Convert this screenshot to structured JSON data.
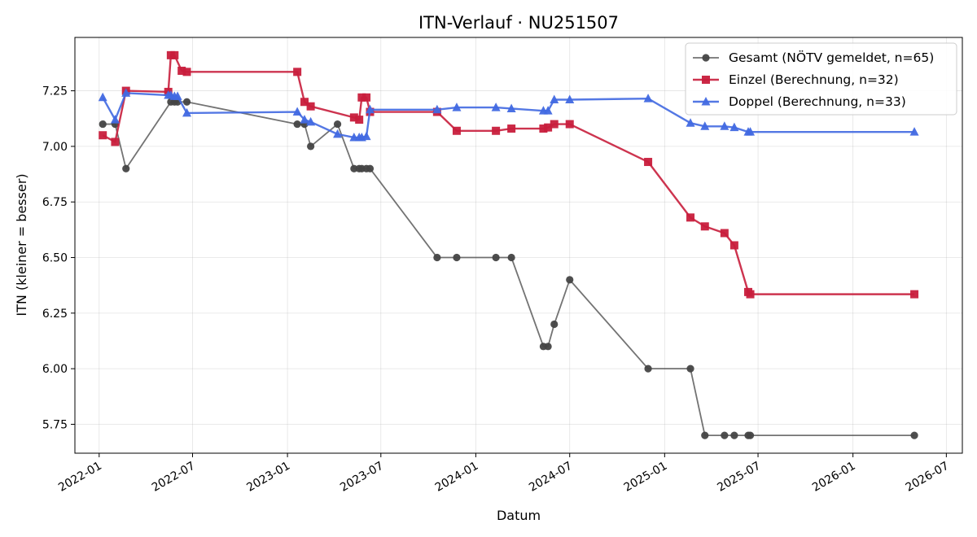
{
  "chart_data": {
    "type": "line",
    "title": "ITN-Verlauf · NU251507",
    "xlabel": "Datum",
    "ylabel": "ITN  (kleiner = besser)",
    "xlim": [
      "2021-11-15",
      "2026-08-01"
    ],
    "ylim": [
      5.62,
      7.49
    ],
    "grid": true,
    "legend_position": "top-right",
    "x_ticks": [
      "2022-01",
      "2022-07",
      "2023-01",
      "2023-07",
      "2024-01",
      "2024-07",
      "2025-01",
      "2025-07",
      "2026-01",
      "2026-07"
    ],
    "y_ticks": [
      "5.75",
      "6.00",
      "6.25",
      "6.50",
      "6.75",
      "7.00",
      "7.25"
    ],
    "series": [
      {
        "name": "Gesamt (NÖTV gemeldet, n=65)",
        "color": "#444444",
        "marker": "circle",
        "x": [
          "2022-01-08",
          "2022-02-01",
          "2022-02-22",
          "2022-05-20",
          "2022-05-27",
          "2022-06-02",
          "2022-06-20",
          "2023-01-20",
          "2023-02-03",
          "2023-02-15",
          "2023-04-08",
          "2023-05-10",
          "2023-05-20",
          "2023-05-25",
          "2023-06-03",
          "2023-06-10",
          "2023-10-18",
          "2023-11-25",
          "2024-02-09",
          "2024-03-10",
          "2024-05-11",
          "2024-05-20",
          "2024-06-01",
          "2024-07-01",
          "2024-11-30",
          "2025-02-20",
          "2025-03-20",
          "2025-04-27",
          "2025-05-16",
          "2025-06-12",
          "2025-06-16",
          "2026-04-30"
        ],
        "y": [
          7.1,
          7.1,
          6.9,
          7.2,
          7.2,
          7.2,
          7.2,
          7.1,
          7.1,
          7.0,
          7.1,
          6.9,
          6.9,
          6.9,
          6.9,
          6.9,
          6.5,
          6.5,
          6.5,
          6.5,
          6.1,
          6.1,
          6.2,
          6.4,
          6.0,
          6.0,
          5.7,
          5.7,
          5.7,
          5.7,
          5.7,
          5.7
        ]
      },
      {
        "name": "Einzel (Berechnung, n=32)",
        "color": "#c81e3c",
        "marker": "square",
        "x": [
          "2022-01-08",
          "2022-02-01",
          "2022-02-22",
          "2022-05-15",
          "2022-05-20",
          "2022-05-27",
          "2022-06-10",
          "2022-06-20",
          "2023-01-20",
          "2023-02-03",
          "2023-02-15",
          "2023-05-10",
          "2023-05-20",
          "2023-05-25",
          "2023-06-03",
          "2023-06-10",
          "2023-10-18",
          "2023-11-25",
          "2024-02-09",
          "2024-03-10",
          "2024-05-11",
          "2024-05-20",
          "2024-06-01",
          "2024-07-01",
          "2024-11-30",
          "2025-02-20",
          "2025-03-20",
          "2025-04-27",
          "2025-05-16",
          "2025-06-12",
          "2025-06-16",
          "2026-04-30"
        ],
        "y": [
          7.05,
          7.02,
          7.25,
          7.245,
          7.41,
          7.41,
          7.34,
          7.335,
          7.335,
          7.2,
          7.18,
          7.13,
          7.12,
          7.22,
          7.22,
          7.155,
          7.155,
          7.07,
          7.07,
          7.08,
          7.08,
          7.085,
          7.1,
          7.1,
          6.93,
          6.68,
          6.64,
          6.61,
          6.555,
          6.345,
          6.335,
          6.335
        ]
      },
      {
        "name": "Doppel (Berechnung, n=33)",
        "color": "#4169e1",
        "marker": "triangle",
        "x": [
          "2022-01-08",
          "2022-02-01",
          "2022-02-22",
          "2022-05-15",
          "2022-05-20",
          "2022-05-27",
          "2022-06-02",
          "2022-06-20",
          "2023-01-20",
          "2023-02-03",
          "2023-02-15",
          "2023-04-08",
          "2023-05-10",
          "2023-05-20",
          "2023-05-25",
          "2023-06-03",
          "2023-06-10",
          "2023-10-18",
          "2023-11-25",
          "2024-02-09",
          "2024-03-10",
          "2024-05-11",
          "2024-05-20",
          "2024-06-01",
          "2024-07-01",
          "2024-11-30",
          "2025-02-20",
          "2025-03-20",
          "2025-04-27",
          "2025-05-16",
          "2025-06-12",
          "2025-06-16",
          "2026-04-30"
        ],
        "y": [
          7.22,
          7.12,
          7.24,
          7.23,
          7.23,
          7.225,
          7.225,
          7.15,
          7.155,
          7.12,
          7.11,
          7.055,
          7.04,
          7.04,
          7.04,
          7.045,
          7.165,
          7.165,
          7.175,
          7.175,
          7.17,
          7.16,
          7.16,
          7.21,
          7.21,
          7.215,
          7.105,
          7.09,
          7.09,
          7.085,
          7.065,
          7.065,
          7.065
        ]
      }
    ]
  }
}
